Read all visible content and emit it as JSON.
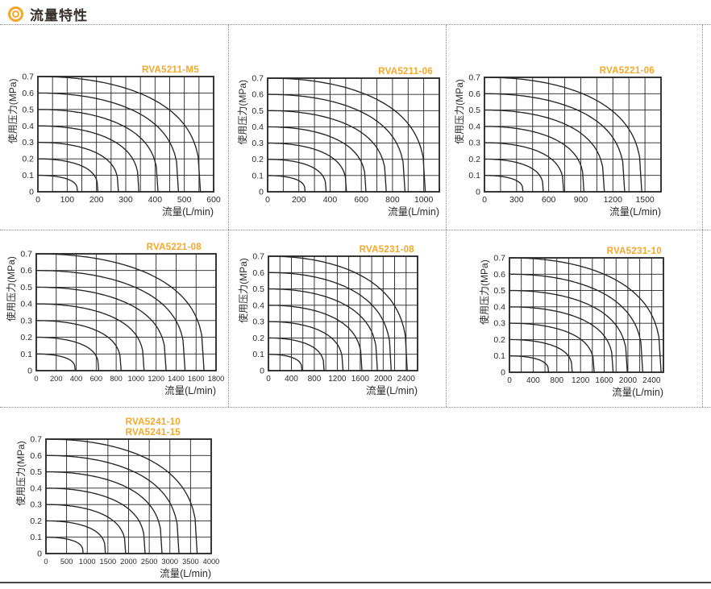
{
  "header": {
    "title": "流量特性"
  },
  "colors": {
    "accent": "#F7A728",
    "heading_text": "#362E2B",
    "axis_text": "#2B2B2B",
    "grid_line": "#222222",
    "curve_line": "#262626",
    "divider": "#8F8F8F"
  },
  "chart_data": [
    {
      "type": "line",
      "title_lines": [
        "RVA5211-M5"
      ],
      "xlabel": "流量(L/min)",
      "ylabel": "使用压力(MPa)",
      "x_max": 600,
      "x_label_step": 100,
      "x_grid_step": 50,
      "y_max": 0.7,
      "y_step": 0.1,
      "grid": true,
      "legend": "none",
      "series": [
        {
          "start_pressure_mpa": 0.1,
          "max_flow_l_min": 135
        },
        {
          "start_pressure_mpa": 0.2,
          "max_flow_l_min": 205
        },
        {
          "start_pressure_mpa": 0.3,
          "max_flow_l_min": 275
        },
        {
          "start_pressure_mpa": 0.4,
          "max_flow_l_min": 345
        },
        {
          "start_pressure_mpa": 0.5,
          "max_flow_l_min": 410
        },
        {
          "start_pressure_mpa": 0.6,
          "max_flow_l_min": 480
        },
        {
          "start_pressure_mpa": 0.7,
          "max_flow_l_min": 555
        }
      ]
    },
    {
      "type": "line",
      "title_lines": [
        "RVA5211-06"
      ],
      "xlabel": "流量(L/min)",
      "ylabel": "使用压力(MPa)",
      "x_max": 1100,
      "x_label_step": 200,
      "x_grid_step": 100,
      "y_max": 0.7,
      "y_step": 0.1,
      "grid": true,
      "legend": "none",
      "series": [
        {
          "start_pressure_mpa": 0.1,
          "max_flow_l_min": 240
        },
        {
          "start_pressure_mpa": 0.2,
          "max_flow_l_min": 375
        },
        {
          "start_pressure_mpa": 0.3,
          "max_flow_l_min": 505
        },
        {
          "start_pressure_mpa": 0.4,
          "max_flow_l_min": 630
        },
        {
          "start_pressure_mpa": 0.5,
          "max_flow_l_min": 760
        },
        {
          "start_pressure_mpa": 0.6,
          "max_flow_l_min": 880
        },
        {
          "start_pressure_mpa": 0.7,
          "max_flow_l_min": 1010
        }
      ]
    },
    {
      "type": "line",
      "title_lines": [
        "RVA5221-06"
      ],
      "xlabel": "流量(L/min)",
      "ylabel": "使用压力(MPa)",
      "x_max": 1650,
      "x_label_step": 300,
      "x_grid_step": 150,
      "y_max": 0.7,
      "y_step": 0.1,
      "grid": true,
      "legend": "none",
      "series": [
        {
          "start_pressure_mpa": 0.1,
          "max_flow_l_min": 360
        },
        {
          "start_pressure_mpa": 0.2,
          "max_flow_l_min": 550
        },
        {
          "start_pressure_mpa": 0.3,
          "max_flow_l_min": 740
        },
        {
          "start_pressure_mpa": 0.4,
          "max_flow_l_min": 930
        },
        {
          "start_pressure_mpa": 0.5,
          "max_flow_l_min": 1120
        },
        {
          "start_pressure_mpa": 0.6,
          "max_flow_l_min": 1310
        },
        {
          "start_pressure_mpa": 0.7,
          "max_flow_l_min": 1470
        }
      ]
    },
    {
      "type": "line",
      "title_lines": [
        "RVA5221-08"
      ],
      "xlabel": "流量(L/min)",
      "ylabel": "使用压力(MPa)",
      "x_max": 1800,
      "x_label_step": 200,
      "x_grid_step": 200,
      "y_max": 0.7,
      "y_step": 0.1,
      "grid": true,
      "legend": "none",
      "series": [
        {
          "start_pressure_mpa": 0.1,
          "max_flow_l_min": 390
        },
        {
          "start_pressure_mpa": 0.2,
          "max_flow_l_min": 625
        },
        {
          "start_pressure_mpa": 0.3,
          "max_flow_l_min": 850
        },
        {
          "start_pressure_mpa": 0.4,
          "max_flow_l_min": 1080
        },
        {
          "start_pressure_mpa": 0.5,
          "max_flow_l_min": 1300
        },
        {
          "start_pressure_mpa": 0.6,
          "max_flow_l_min": 1490
        },
        {
          "start_pressure_mpa": 0.7,
          "max_flow_l_min": 1680
        }
      ]
    },
    {
      "type": "line",
      "title_lines": [
        "RVA5231-08"
      ],
      "xlabel": "流量(L/min)",
      "ylabel": "使用压力(MPa)",
      "x_max": 2600,
      "x_label_step": 400,
      "x_grid_step": 200,
      "y_max": 0.7,
      "y_step": 0.1,
      "grid": true,
      "legend": "none",
      "series": [
        {
          "start_pressure_mpa": 0.1,
          "max_flow_l_min": 585
        },
        {
          "start_pressure_mpa": 0.2,
          "max_flow_l_min": 970
        },
        {
          "start_pressure_mpa": 0.3,
          "max_flow_l_min": 1300
        },
        {
          "start_pressure_mpa": 0.4,
          "max_flow_l_min": 1630
        },
        {
          "start_pressure_mpa": 0.5,
          "max_flow_l_min": 1900
        },
        {
          "start_pressure_mpa": 0.6,
          "max_flow_l_min": 2140
        },
        {
          "start_pressure_mpa": 0.7,
          "max_flow_l_min": 2420
        }
      ]
    },
    {
      "type": "line",
      "title_lines": [
        "RVA5231-10"
      ],
      "xlabel": "流量(L/min)",
      "ylabel": "使用压力(MPa)",
      "x_max": 2600,
      "x_label_step": 400,
      "x_grid_step": 200,
      "y_max": 0.7,
      "y_step": 0.1,
      "grid": true,
      "legend": "none",
      "series": [
        {
          "start_pressure_mpa": 0.1,
          "max_flow_l_min": 660
        },
        {
          "start_pressure_mpa": 0.2,
          "max_flow_l_min": 1060
        },
        {
          "start_pressure_mpa": 0.3,
          "max_flow_l_min": 1430
        },
        {
          "start_pressure_mpa": 0.4,
          "max_flow_l_min": 1750
        },
        {
          "start_pressure_mpa": 0.5,
          "max_flow_l_min": 1990
        },
        {
          "start_pressure_mpa": 0.6,
          "max_flow_l_min": 2250
        },
        {
          "start_pressure_mpa": 0.7,
          "max_flow_l_min": 2560
        }
      ]
    },
    {
      "type": "line",
      "title_lines": [
        "RVA5241-10",
        "RVA5241-15"
      ],
      "xlabel": "流量(L/min)",
      "ylabel": "使用压力(MPa)",
      "x_max": 4000,
      "x_label_step": 500,
      "x_grid_step": 500,
      "y_max": 0.7,
      "y_step": 0.1,
      "grid": true,
      "legend": "none",
      "series": [
        {
          "start_pressure_mpa": 0.1,
          "max_flow_l_min": 900
        },
        {
          "start_pressure_mpa": 0.2,
          "max_flow_l_min": 1440
        },
        {
          "start_pressure_mpa": 0.3,
          "max_flow_l_min": 1930
        },
        {
          "start_pressure_mpa": 0.4,
          "max_flow_l_min": 2400
        },
        {
          "start_pressure_mpa": 0.5,
          "max_flow_l_min": 2810
        },
        {
          "start_pressure_mpa": 0.6,
          "max_flow_l_min": 3220
        },
        {
          "start_pressure_mpa": 0.7,
          "max_flow_l_min": 3660
        }
      ]
    }
  ]
}
